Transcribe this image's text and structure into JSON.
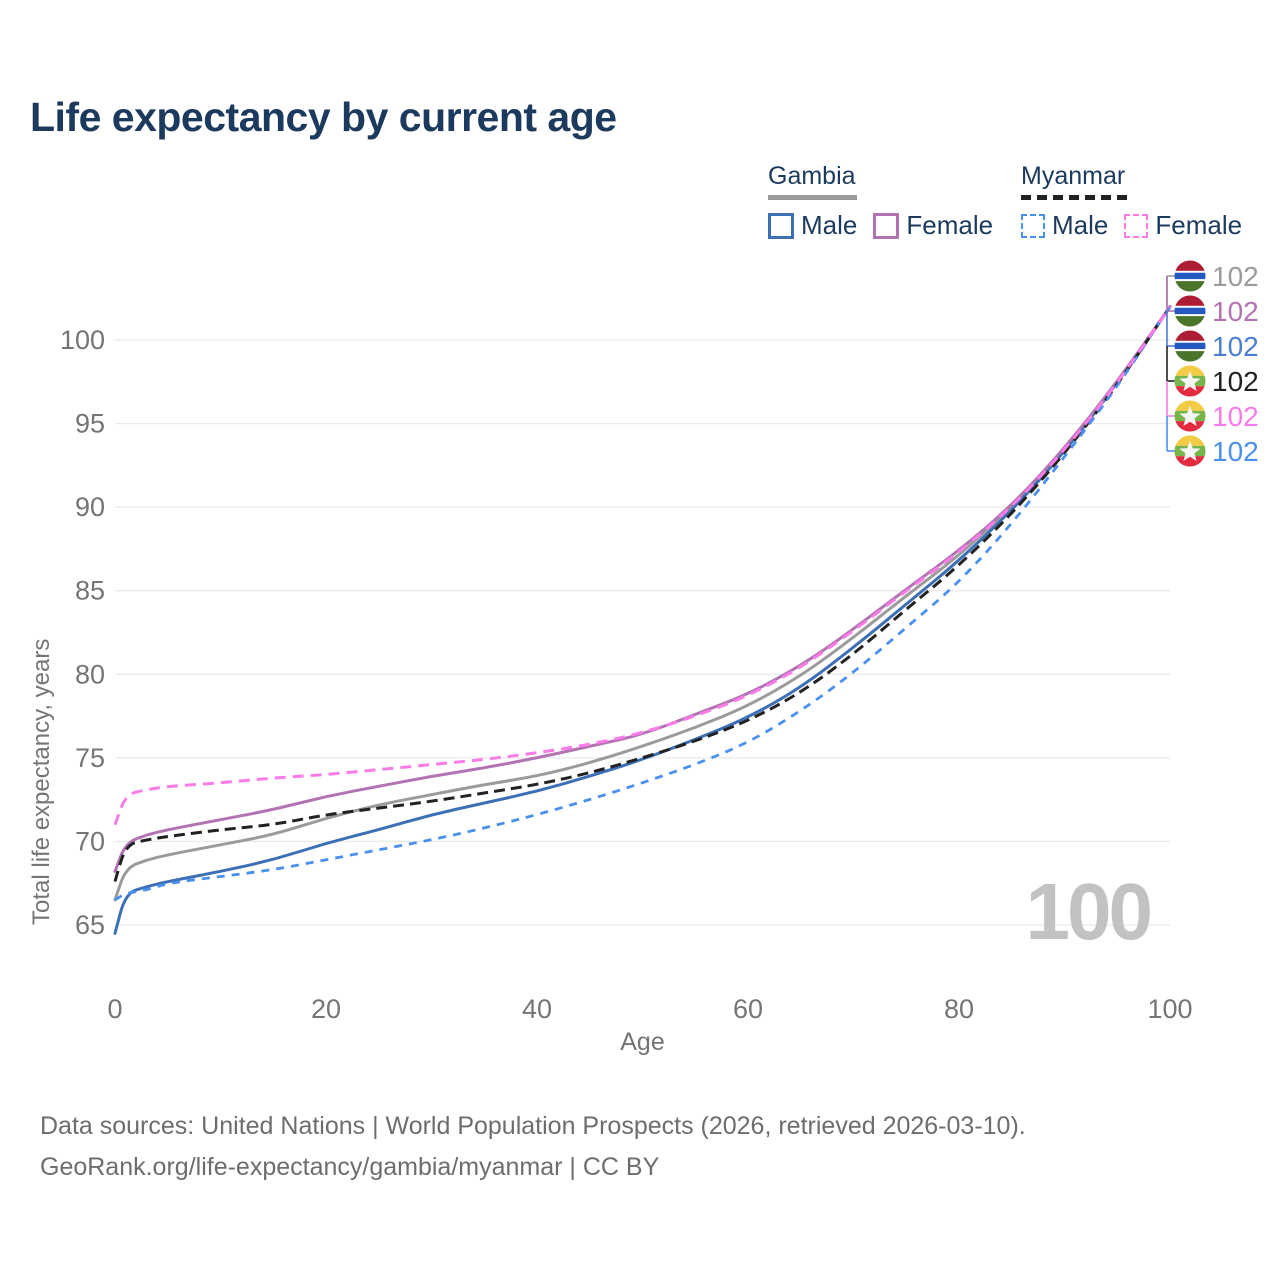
{
  "title": "Life expectancy by current age",
  "legend": {
    "groups": [
      {
        "label": "Gambia",
        "line_style": "solid",
        "line_color": "#9b9b9b",
        "items": [
          {
            "label": "Male",
            "color": "#3d6fb6",
            "style": "solid"
          },
          {
            "label": "Female",
            "color": "#b273b2",
            "style": "solid"
          }
        ]
      },
      {
        "label": "Myanmar",
        "line_style": "dashed",
        "line_color": "#222222",
        "items": [
          {
            "label": "Male",
            "color": "#4a90ee",
            "style": "dashed"
          },
          {
            "label": "Female",
            "color": "#fb7be8",
            "style": "dashed"
          }
        ]
      }
    ]
  },
  "chart_data": {
    "type": "line",
    "title": "Life expectancy by current age",
    "xlabel": "Age",
    "ylabel": "Total life expectancy, years",
    "xlim": [
      0,
      100
    ],
    "ylim": [
      63,
      103.5
    ],
    "x_ticks": [
      0,
      20,
      40,
      60,
      80,
      100
    ],
    "y_ticks": [
      65,
      70,
      75,
      80,
      85,
      90,
      95,
      100
    ],
    "grid": "horizontal",
    "ages": [
      0,
      1,
      3,
      5,
      10,
      15,
      20,
      25,
      30,
      35,
      40,
      45,
      50,
      55,
      60,
      65,
      70,
      75,
      80,
      85,
      90,
      95,
      100
    ],
    "series": [
      {
        "id": "gambia-all",
        "name": "Gambia (both sexes)",
        "country": "Gambia",
        "sex": "all",
        "color": "#9b9b9b",
        "dash": "solid",
        "width": 3,
        "values": [
          66.5,
          68.4,
          68.9,
          69.2,
          69.8,
          70.4,
          71.4,
          72.2,
          72.8,
          73.4,
          73.9,
          74.7,
          75.7,
          76.8,
          78.1,
          79.9,
          82.2,
          84.7,
          87.1,
          90.0,
          93.4,
          97.4,
          102
        ]
      },
      {
        "id": "gambia-male",
        "name": "Gambia Male",
        "country": "Gambia",
        "sex": "male",
        "color": "#3d6fb6",
        "dash": "solid",
        "width": 3,
        "values": [
          64.5,
          66.9,
          67.3,
          67.6,
          68.2,
          68.9,
          69.9,
          70.7,
          71.6,
          72.3,
          73.0,
          73.9,
          74.9,
          76.1,
          77.4,
          79.2,
          81.6,
          84.2,
          86.8,
          89.8,
          93.3,
          97.4,
          102
        ]
      },
      {
        "id": "gambia-female",
        "name": "Gambia Female",
        "country": "Gambia",
        "sex": "female",
        "color": "#b273b2",
        "dash": "solid",
        "width": 3,
        "values": [
          68.2,
          69.9,
          70.4,
          70.7,
          71.3,
          71.9,
          72.7,
          73.3,
          73.9,
          74.4,
          75.0,
          75.7,
          76.4,
          77.6,
          78.8,
          80.5,
          82.7,
          85.1,
          87.4,
          90.1,
          93.5,
          97.5,
          102
        ]
      },
      {
        "id": "myanmar-all",
        "name": "Myanmar (both sexes)",
        "country": "Myanmar",
        "sex": "all",
        "color": "#222222",
        "dash": "dashed",
        "width": 3,
        "values": [
          67.6,
          69.8,
          70.1,
          70.3,
          70.7,
          71.0,
          71.6,
          72.0,
          72.4,
          72.9,
          73.4,
          74.1,
          75.0,
          76.0,
          77.2,
          78.9,
          81.2,
          83.9,
          86.5,
          89.6,
          93.2,
          97.3,
          102
        ]
      },
      {
        "id": "myanmar-male",
        "name": "Myanmar Male",
        "country": "Myanmar",
        "sex": "male",
        "color": "#4a90ee",
        "dash": "dashed",
        "width": 2.8,
        "values": [
          66.5,
          66.9,
          67.1,
          67.5,
          67.9,
          68.3,
          68.9,
          69.5,
          70.1,
          70.8,
          71.6,
          72.5,
          73.5,
          74.6,
          75.9,
          77.8,
          80.1,
          82.8,
          85.5,
          89.0,
          93.0,
          97.2,
          102
        ]
      },
      {
        "id": "myanmar-female",
        "name": "Myanmar Female",
        "country": "Myanmar",
        "sex": "female",
        "color": "#fb7be8",
        "dash": "dashed",
        "width": 3,
        "values": [
          71.0,
          72.8,
          73.1,
          73.3,
          73.5,
          73.8,
          74.0,
          74.3,
          74.6,
          74.9,
          75.3,
          75.8,
          76.5,
          77.5,
          78.7,
          80.4,
          82.6,
          85.0,
          87.3,
          90.0,
          93.4,
          97.4,
          102
        ]
      }
    ]
  },
  "end_labels": [
    {
      "flag": "gambia",
      "series": "Gambia (both sexes)",
      "value": "102",
      "color": "#9b9b9b"
    },
    {
      "flag": "gambia",
      "series": "Gambia Female",
      "value": "102",
      "color": "#b273b2"
    },
    {
      "flag": "gambia",
      "series": "Gambia Male",
      "value": "102",
      "color": "#4a7fd0"
    },
    {
      "flag": "myanmar",
      "series": "Myanmar (both sexes)",
      "value": "102",
      "color": "#222222"
    },
    {
      "flag": "myanmar",
      "series": "Myanmar Female",
      "value": "102",
      "color": "#fb7be8"
    },
    {
      "flag": "myanmar",
      "series": "Myanmar Male",
      "value": "102",
      "color": "#4a90ee"
    }
  ],
  "flag_colors": {
    "gambia": {
      "red": "#ad1d33",
      "white": "#ffffff",
      "blue": "#2659c0",
      "green": "#4a7429"
    },
    "myanmar": {
      "yellow": "#f3cc45",
      "green": "#77b54b",
      "red": "#e22b3f",
      "star": "#f5f5f5"
    }
  },
  "age_counter": "100",
  "footer": {
    "line1": "Data sources: United Nations | World Population Prospects (2026, retrieved 2026-03-10).",
    "line2": "GeoRank.org/life-expectancy/gambia/myanmar | CC BY"
  }
}
